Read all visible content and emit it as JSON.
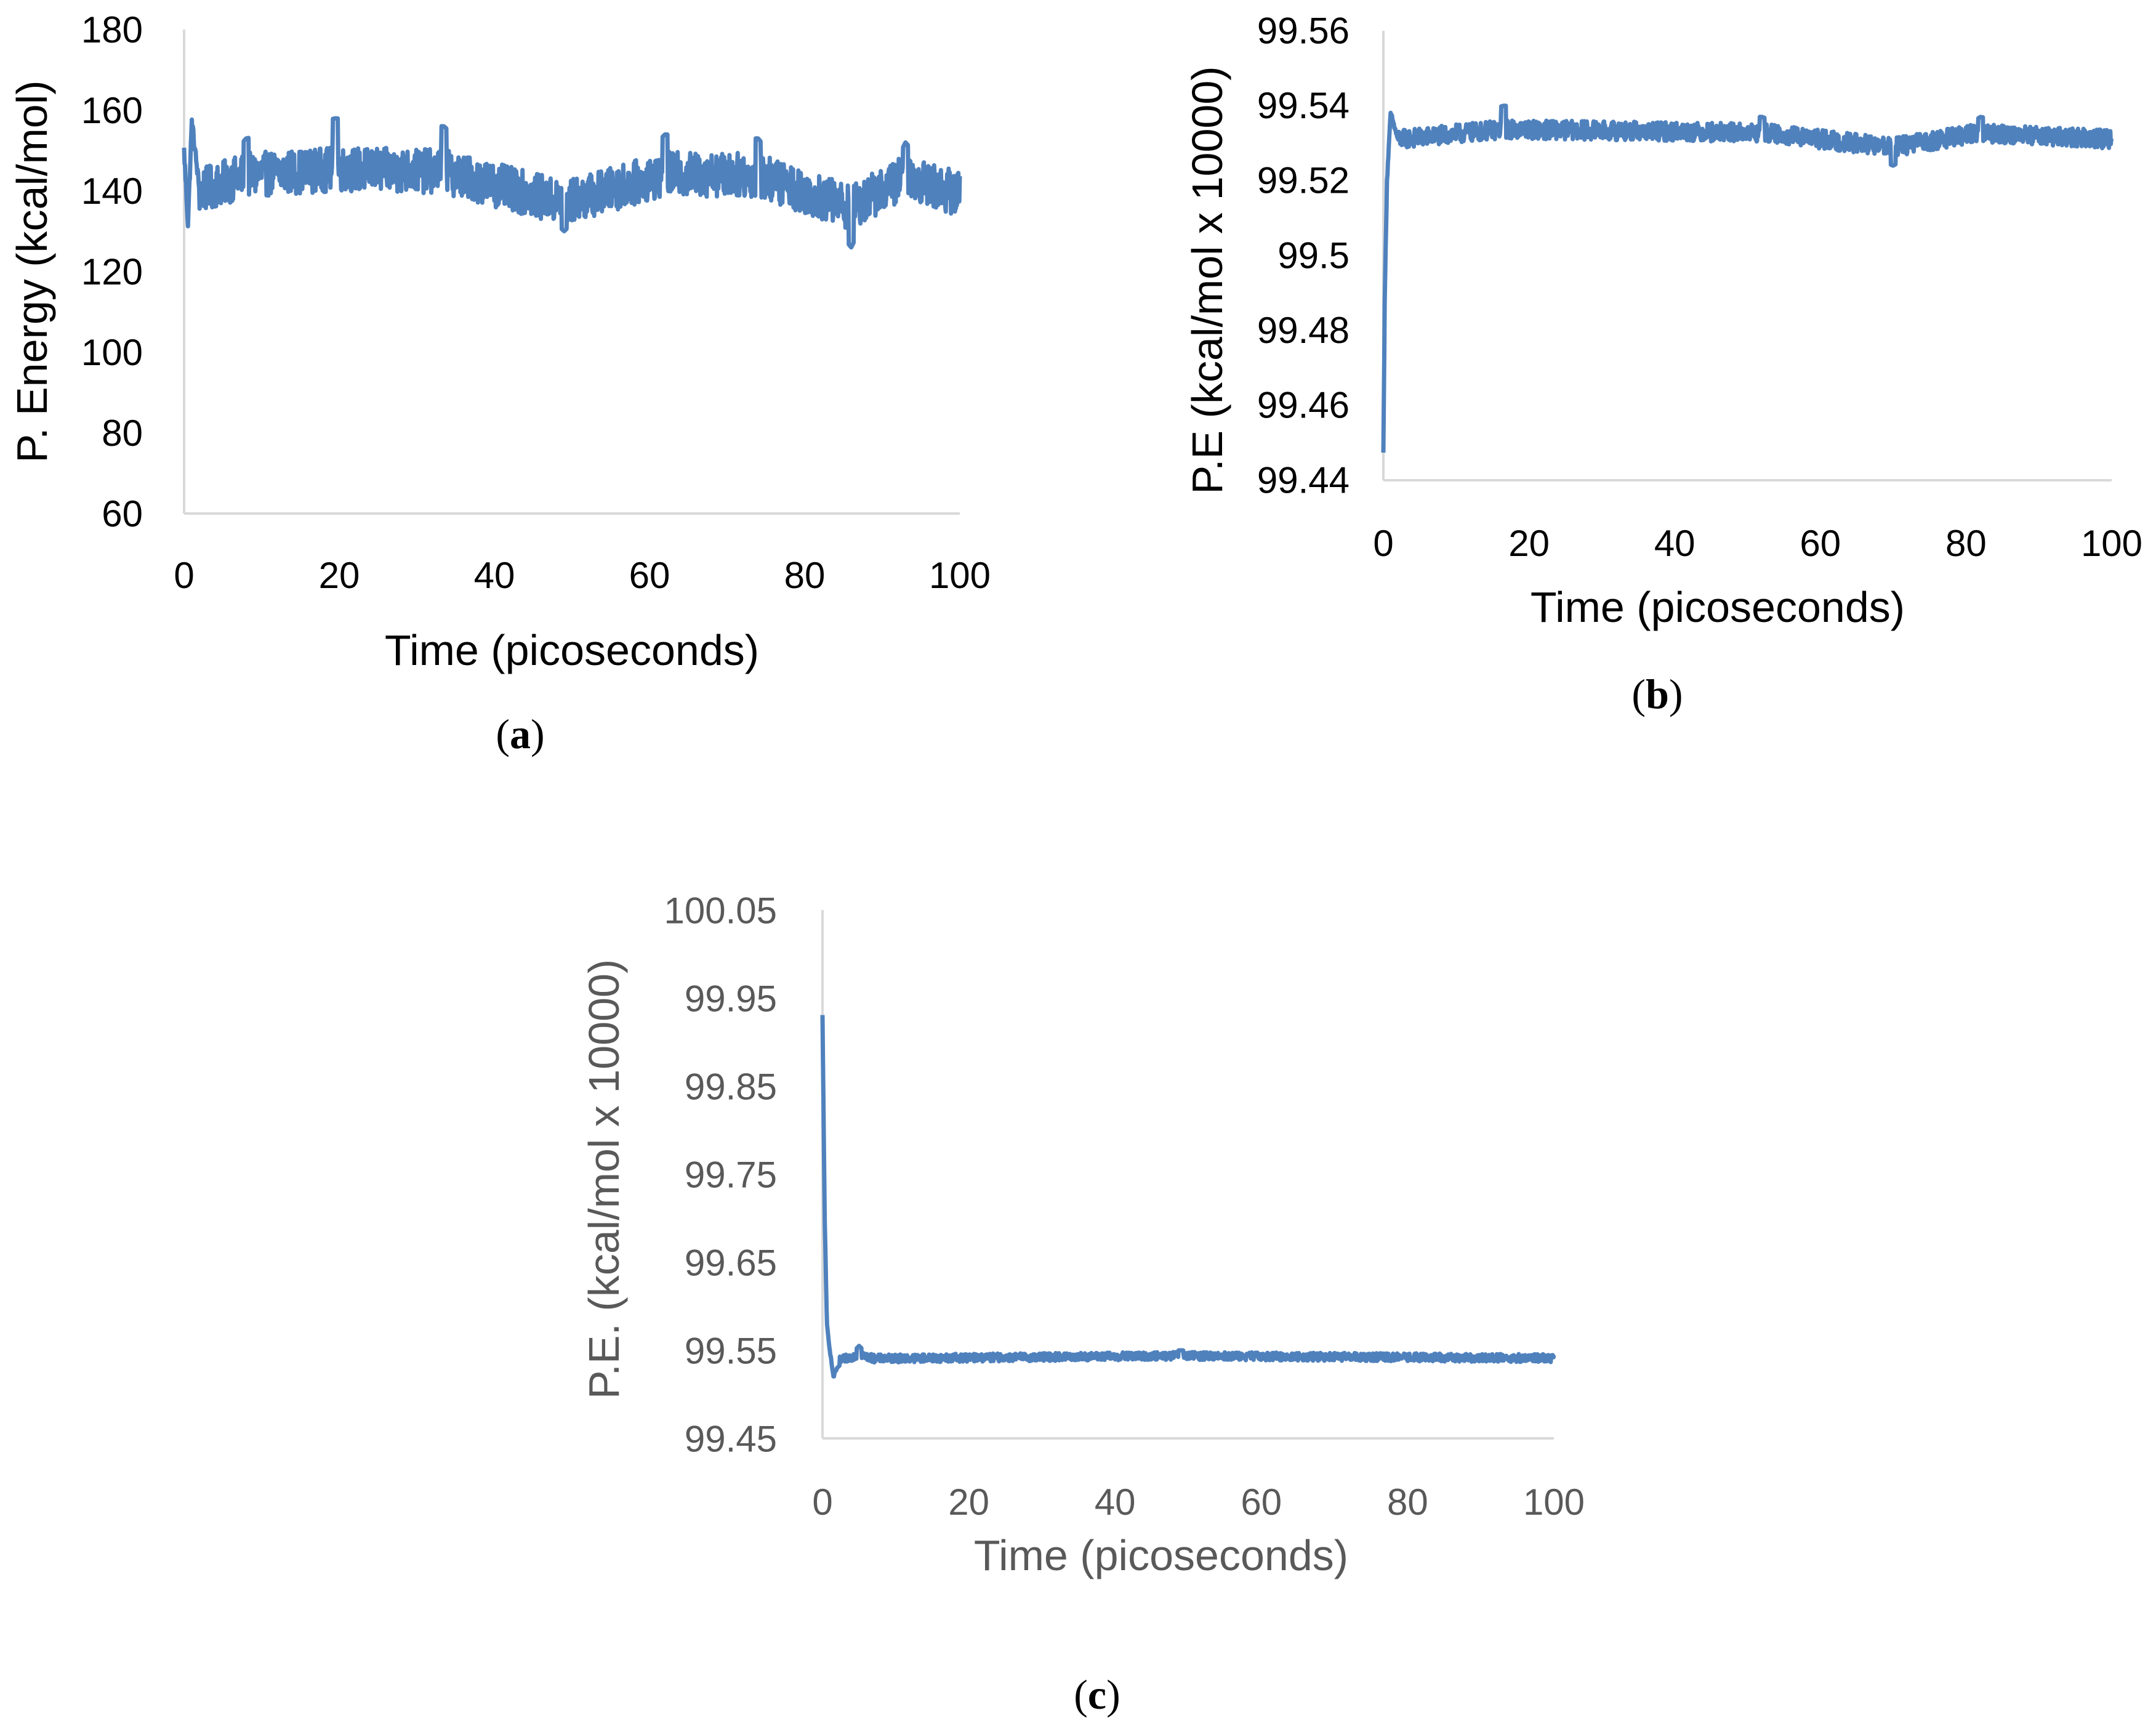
{
  "colors": {
    "series": "#4f81bd",
    "axis": "#d9d9d9",
    "text_dark": "#000000",
    "text_gray": "#595959"
  },
  "chart_data": [
    {
      "id": "a",
      "type": "line",
      "caption": "a",
      "xlabel": "Time (picoseconds)",
      "ylabel": "P. Energy (kcal/mol)",
      "xlim": [
        0,
        100
      ],
      "ylim": [
        60,
        180
      ],
      "xticks": [
        "0",
        "20",
        "40",
        "60",
        "80",
        "100"
      ],
      "yticks": [
        "60",
        "80",
        "100",
        "120",
        "140",
        "160",
        "180"
      ],
      "series": [
        {
          "name": "P. Energy",
          "mean": 140,
          "noise": 5.5,
          "start": 148,
          "x": [
            0,
            0.5,
            1,
            2,
            8,
            19.5,
            33.5,
            49,
            62,
            74,
            86,
            93,
            100
          ],
          "y": [
            150,
            132,
            157,
            140,
            153,
            158,
            156,
            130,
            154,
            153,
            126,
            152,
            137
          ]
        }
      ]
    },
    {
      "id": "b",
      "type": "line",
      "caption": "b",
      "xlabel": "Time (picoseconds)",
      "ylabel": "P.E (kcal/mol x 10000)",
      "xlim": [
        0,
        100
      ],
      "ylim": [
        99.44,
        99.56
      ],
      "xticks": [
        "0",
        "20",
        "40",
        "60",
        "80",
        "100"
      ],
      "yticks": [
        "99.44",
        "99.46",
        "99.48",
        "99.5",
        "99.52",
        "99.54",
        "99.56"
      ],
      "series": [
        {
          "name": "P.E",
          "mean": 99.531,
          "noise": 0.0025,
          "x": [
            0,
            0.2,
            0.5,
            1,
            2,
            16.5,
            52,
            70,
            82,
            100
          ],
          "y": [
            99.447,
            99.49,
            99.52,
            99.538,
            99.531,
            99.54,
            99.537,
            99.524,
            99.537,
            99.531
          ]
        }
      ]
    },
    {
      "id": "c",
      "type": "line",
      "caption": "c",
      "xlabel": "Time (picoseconds)",
      "ylabel": "P.E. (kcal/mol x 10000)",
      "xlim": [
        0,
        100
      ],
      "ylim": [
        99.45,
        100.05
      ],
      "xticks": [
        "0",
        "20",
        "40",
        "60",
        "80",
        "100"
      ],
      "yticks": [
        "99.45",
        "99.55",
        "99.65",
        "99.75",
        "99.85",
        "99.95",
        "100.05"
      ],
      "series": [
        {
          "name": "P.E.",
          "mean": 99.541,
          "noise": 0.0045,
          "x": [
            0,
            0.3,
            0.6,
            1,
            1.5,
            2,
            5,
            7,
            49,
            100
          ],
          "y": [
            99.93,
            99.7,
            99.58,
            99.55,
            99.52,
            99.53,
            99.555,
            99.54,
            99.55,
            99.541
          ]
        }
      ]
    }
  ]
}
